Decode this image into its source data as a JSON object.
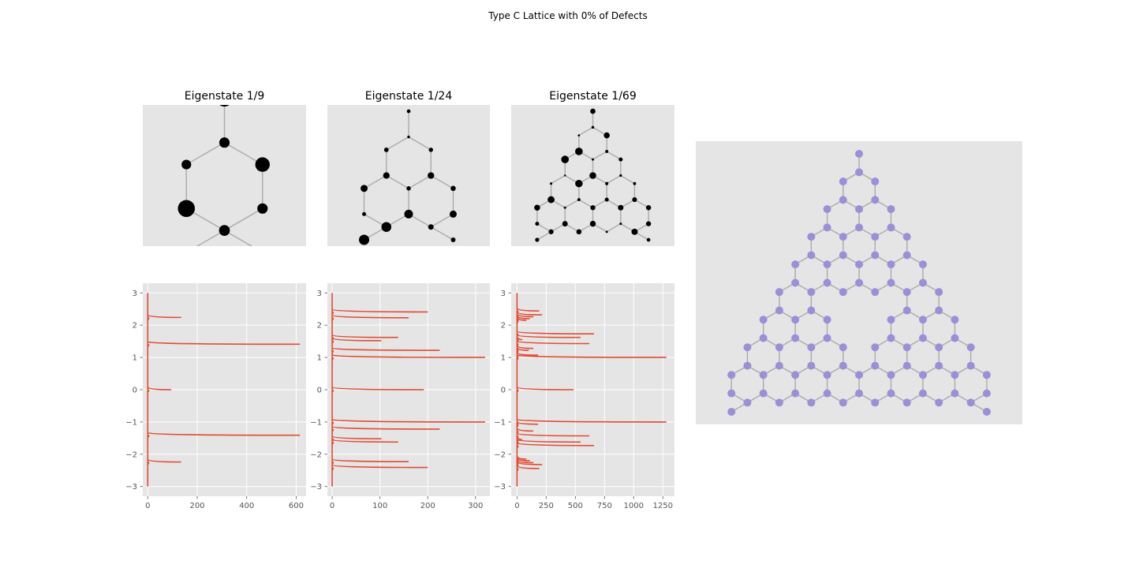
{
  "figure": {
    "suptitle": "Type C Lattice with 0% of Defects",
    "background": "#ffffff",
    "axes_facecolor": "#e5e5e5",
    "grid_color": "#ffffff",
    "edge_color": "#aaaaaa",
    "node_color_large": "#9b8fd8",
    "spectrum_color": "#e24a33"
  },
  "lattice_panels": [
    {
      "title": "Eigenstate 1/9",
      "level": 1
    },
    {
      "title": "Eigenstate 1/24",
      "level": 2
    },
    {
      "title": "Eigenstate 1/69",
      "level": 3
    }
  ],
  "large_lattice": {
    "level": 4
  },
  "chart_data": [
    {
      "type": "line",
      "panel": "spectrum-1",
      "orientation": "horizontal",
      "xlim": [
        -20,
        640
      ],
      "ylim": [
        -3.3,
        3.3
      ],
      "xticks": [
        0,
        200,
        400,
        600
      ],
      "xtick_labels": [
        "0",
        "200",
        "400",
        "600"
      ],
      "yticks": [
        3,
        2,
        1,
        0,
        -1,
        -2,
        -3
      ],
      "ytick_labels": [
        "3",
        "2",
        "1",
        "0",
        "−1",
        "−2",
        "−3"
      ],
      "peaks": [
        {
          "y": 2.24,
          "x": 135
        },
        {
          "y": 1.41,
          "x": 615
        },
        {
          "y": 0.0,
          "x": 95
        },
        {
          "y": -1.41,
          "x": 615
        },
        {
          "y": -2.24,
          "x": 135
        }
      ]
    },
    {
      "type": "line",
      "panel": "spectrum-2",
      "orientation": "horizontal",
      "xlim": [
        -10,
        330
      ],
      "ylim": [
        -3.3,
        3.3
      ],
      "xticks": [
        0,
        100,
        200,
        300
      ],
      "xtick_labels": [
        "0",
        "100",
        "200",
        "300"
      ],
      "yticks": [
        3,
        2,
        1,
        0,
        -1,
        -2,
        -3
      ],
      "ytick_labels": [
        "3",
        "2",
        "1",
        "0",
        "−1",
        "−2",
        "−3"
      ],
      "peaks": [
        {
          "y": 2.41,
          "x": 200
        },
        {
          "y": 2.23,
          "x": 160
        },
        {
          "y": 1.62,
          "x": 138
        },
        {
          "y": 1.52,
          "x": 103
        },
        {
          "y": 1.22,
          "x": 225
        },
        {
          "y": 1.0,
          "x": 320
        },
        {
          "y": 0.0,
          "x": 192
        },
        {
          "y": -1.0,
          "x": 320
        },
        {
          "y": -1.22,
          "x": 225
        },
        {
          "y": -1.52,
          "x": 103
        },
        {
          "y": -1.62,
          "x": 138
        },
        {
          "y": -2.23,
          "x": 160
        },
        {
          "y": -2.41,
          "x": 200
        }
      ]
    },
    {
      "type": "line",
      "panel": "spectrum-3",
      "orientation": "horizontal",
      "xlim": [
        -50,
        1350
      ],
      "ylim": [
        -3.3,
        3.3
      ],
      "xticks": [
        0,
        250,
        500,
        750,
        1000,
        1250
      ],
      "xtick_labels": [
        "0",
        "250",
        "500",
        "750",
        "1000",
        "1250"
      ],
      "yticks": [
        3,
        2,
        1,
        0,
        -1,
        -2,
        -3
      ],
      "ytick_labels": [
        "3",
        "2",
        "1",
        "0",
        "−1",
        "−2",
        "−3"
      ],
      "peaks": [
        {
          "y": 2.44,
          "x": 190
        },
        {
          "y": 2.32,
          "x": 215
        },
        {
          "y": 2.26,
          "x": 140
        },
        {
          "y": 2.2,
          "x": 110
        },
        {
          "y": 2.15,
          "x": 80
        },
        {
          "y": 1.73,
          "x": 660
        },
        {
          "y": 1.62,
          "x": 545
        },
        {
          "y": 1.55,
          "x": 45
        },
        {
          "y": 1.43,
          "x": 620
        },
        {
          "y": 1.28,
          "x": 140
        },
        {
          "y": 1.22,
          "x": 100
        },
        {
          "y": 1.07,
          "x": 180
        },
        {
          "y": 1.0,
          "x": 1280
        },
        {
          "y": 0.0,
          "x": 485
        },
        {
          "y": -1.0,
          "x": 1280
        },
        {
          "y": -1.07,
          "x": 180
        },
        {
          "y": -1.28,
          "x": 140
        },
        {
          "y": -1.43,
          "x": 620
        },
        {
          "y": -1.55,
          "x": 45
        },
        {
          "y": -1.62,
          "x": 545
        },
        {
          "y": -1.73,
          "x": 660
        },
        {
          "y": -2.15,
          "x": 80
        },
        {
          "y": -2.2,
          "x": 110
        },
        {
          "y": -2.26,
          "x": 140
        },
        {
          "y": -2.32,
          "x": 215
        },
        {
          "y": -2.44,
          "x": 190
        }
      ]
    }
  ]
}
